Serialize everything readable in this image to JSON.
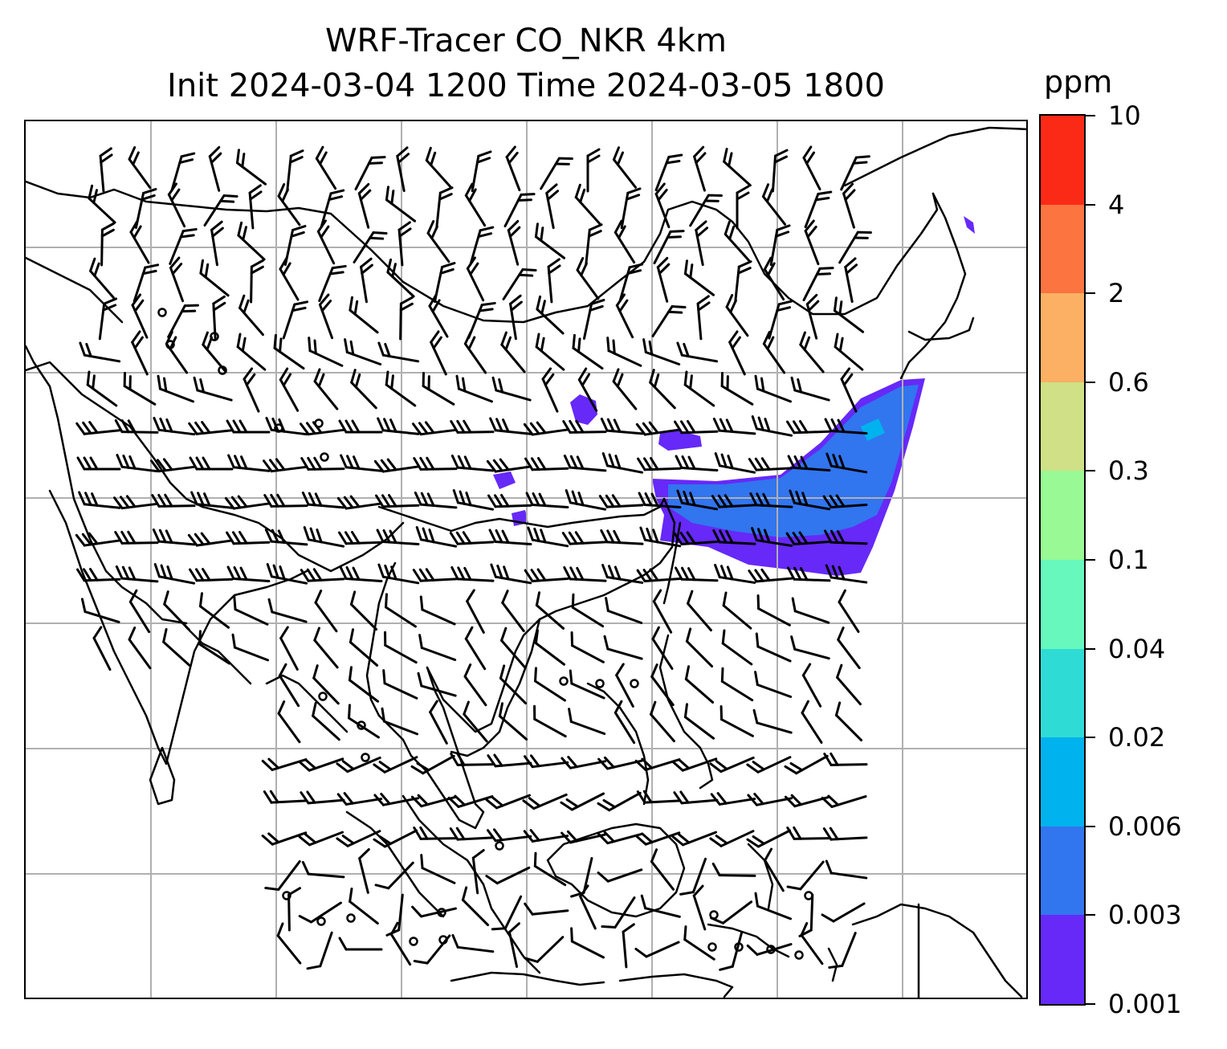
{
  "figure": {
    "title_line1": "WRF-Tracer CO_NKR 4km",
    "title_line2": "Init 2024-03-04 1200 Time 2024-03-05 1800"
  },
  "colorbar": {
    "unit": "ppm",
    "levels": [
      "0.001",
      "0.003",
      "0.006",
      "0.02",
      "0.04",
      "0.1",
      "0.3",
      "0.6",
      "2",
      "4",
      "10"
    ],
    "colors": [
      "#6629f8",
      "#3175ef",
      "#00b2ed",
      "#2fdcd5",
      "#66f8bd",
      "#99f995",
      "#cfe086",
      "#fbb064",
      "#fc7440",
      "#fb2a17"
    ]
  },
  "map": {
    "gridlines": true,
    "gridline_color": "#b0b0b0",
    "coastline_color": "#000000",
    "tracer_plume_present": true,
    "wind_barbs": true,
    "calm_wind_circles": true
  }
}
